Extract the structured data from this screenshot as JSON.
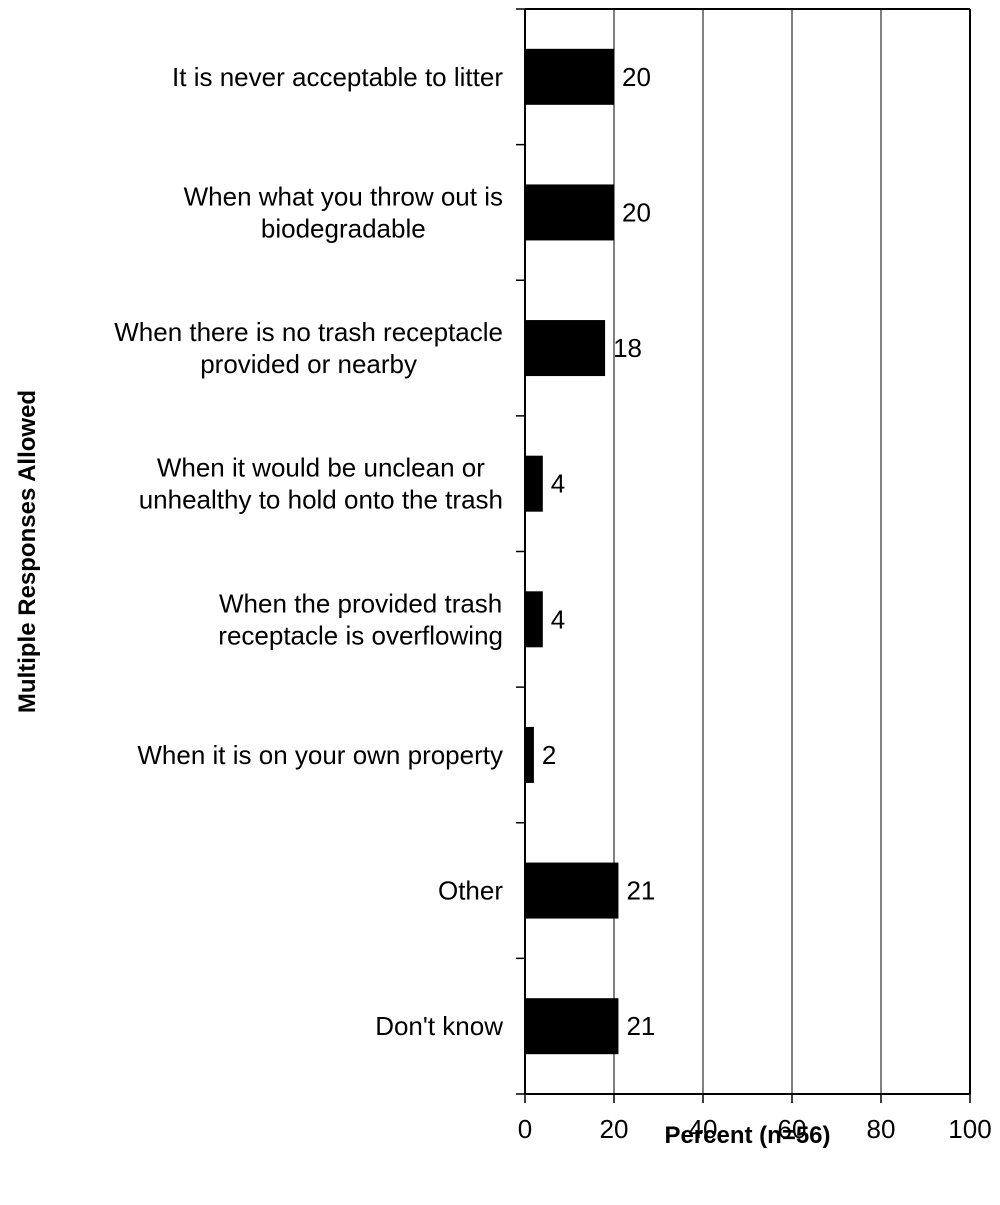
{
  "chart_data": {
    "type": "bar",
    "orientation": "horizontal",
    "categories": [
      [
        "It is never acceptable to litter"
      ],
      [
        "When what you throw out is",
        "biodegradable"
      ],
      [
        "When there is no trash receptacle",
        "provided or nearby"
      ],
      [
        "When it would be unclean or",
        "unhealthy to hold onto the trash"
      ],
      [
        "When the provided trash",
        "receptacle is overflowing"
      ],
      [
        "When it is on your own property"
      ],
      [
        "Other"
      ],
      [
        "Don't know"
      ]
    ],
    "values": [
      20,
      20,
      18,
      4,
      4,
      2,
      21,
      21
    ],
    "value_labels": [
      "20",
      "20",
      "18",
      "4",
      "4",
      "2",
      "21",
      "21"
    ],
    "xlabel": "Percent (n=56)",
    "ylabel": "Multiple Responses Allowed",
    "xlim": [
      0,
      100
    ],
    "xticks": [
      0,
      20,
      40,
      60,
      80,
      100
    ],
    "xtick_labels": [
      "0",
      "20",
      "40",
      "60",
      "80",
      "100"
    ],
    "grid": "vertical",
    "bar_color": "#000000"
  }
}
